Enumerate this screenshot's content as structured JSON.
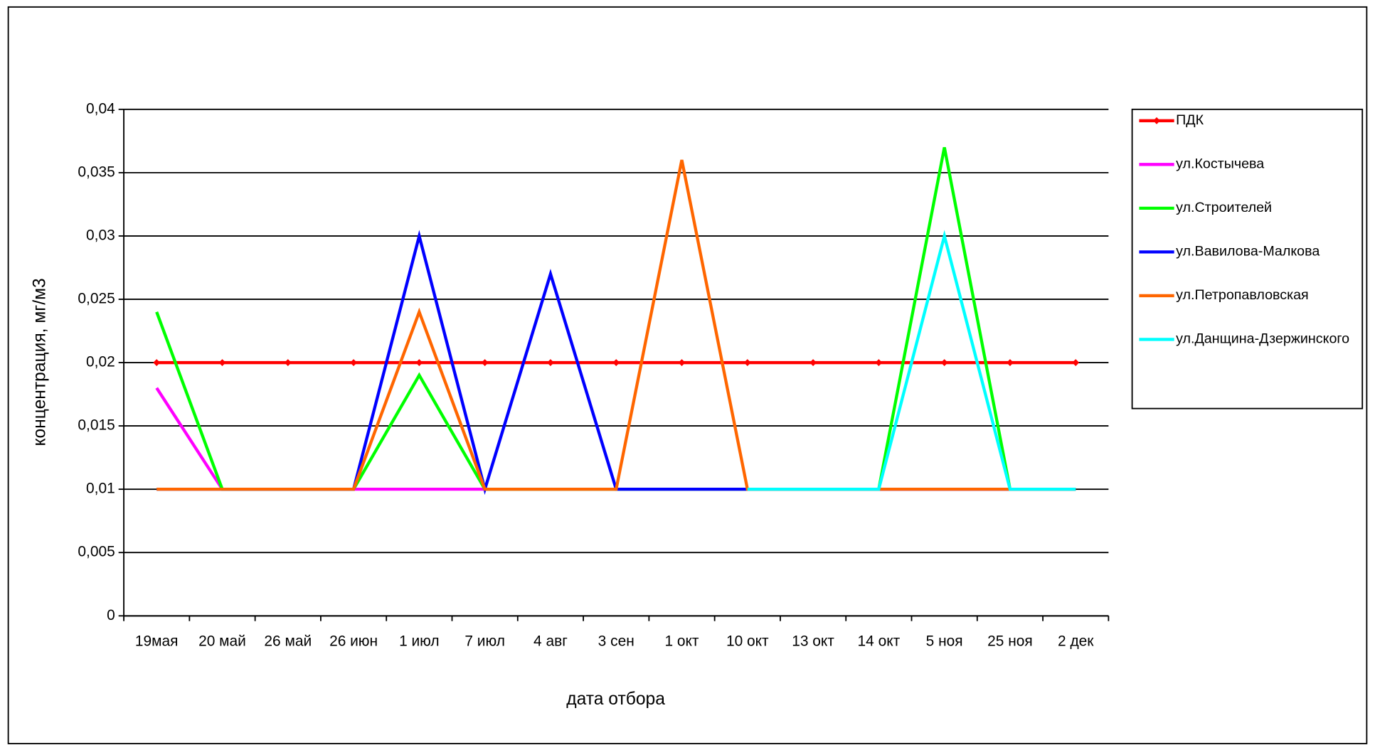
{
  "chart_data": {
    "type": "line",
    "y_label": "концентрация, мг/м3",
    "x_label": "дата отбора",
    "categories": [
      "19мая",
      "20 май",
      "26 май",
      "26 июн",
      "1 июл",
      "7 июл",
      "4 авг",
      "3 сен",
      "1 окт",
      "10 окт",
      "13 окт",
      "14 окт",
      "5 ноя",
      "25 ноя",
      "2 дек"
    ],
    "series": [
      {
        "name": "ПДК",
        "color": "#ff0000",
        "marker": "diamond",
        "values": [
          0.02,
          0.02,
          0.02,
          0.02,
          0.02,
          0.02,
          0.02,
          0.02,
          0.02,
          0.02,
          0.02,
          0.02,
          0.02,
          0.02,
          0.02
        ]
      },
      {
        "name": "ул.Костычева",
        "color": "#ff00ff",
        "values": [
          0.018,
          0.01,
          0.01,
          0.01,
          0.01,
          0.01,
          0.01,
          0.01,
          0.01,
          0.01,
          0.01,
          0.01,
          0.01,
          0.01,
          0.01
        ]
      },
      {
        "name": "ул.Строителей",
        "color": "#00ff00",
        "values": [
          0.024,
          0.01,
          0.01,
          0.01,
          0.019,
          0.01,
          0.01,
          0.01,
          0.01,
          0.01,
          0.01,
          0.01,
          0.037,
          0.01,
          0.01
        ]
      },
      {
        "name": "ул.Вавилова-Малкова",
        "color": "#0000ff",
        "values": [
          0.01,
          0.01,
          0.01,
          0.01,
          0.03,
          0.01,
          0.027,
          0.01,
          0.01,
          0.01,
          0.01,
          0.01,
          0.01,
          0.01,
          0.01
        ]
      },
      {
        "name": "ул.Петропавловская",
        "color": "#ff6600",
        "values": [
          0.01,
          0.01,
          0.01,
          0.01,
          0.024,
          0.01,
          0.01,
          0.01,
          0.036,
          0.01,
          0.01,
          0.01,
          0.01,
          0.01,
          0.01
        ]
      },
      {
        "name": "ул.Данщина-Дзержинского",
        "color": "#00ffff",
        "values": [
          null,
          null,
          null,
          null,
          null,
          null,
          null,
          null,
          null,
          0.01,
          0.01,
          0.01,
          0.03,
          0.01,
          0.01
        ]
      }
    ],
    "ylim": [
      0,
      0.04
    ],
    "yticks": [
      0,
      {
        "value": 0.005,
        "label": "0,005"
      },
      {
        "value": 0.01,
        "label": "0,01"
      },
      {
        "value": 0.015,
        "label": "0,015"
      },
      {
        "value": 0.02,
        "label": "0,02"
      },
      {
        "value": 0.025,
        "label": "0,025"
      },
      {
        "value": 0.03,
        "label": "0,03"
      },
      {
        "value": 0.035,
        "label": "0,035"
      },
      {
        "value": 0.04,
        "label": "0,04"
      }
    ],
    "grid": true
  }
}
